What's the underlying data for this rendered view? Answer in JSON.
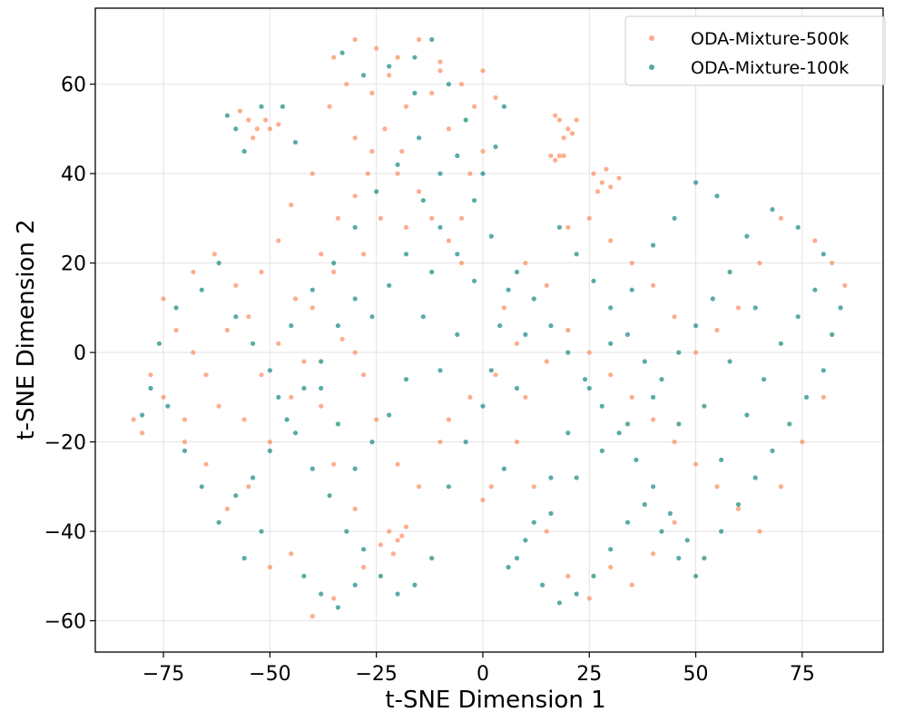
{
  "chart_data": {
    "type": "scatter",
    "title": "",
    "xlabel": "t-SNE Dimension 1",
    "ylabel": "t-SNE Dimension 2",
    "xlim": [
      -91,
      94
    ],
    "ylim": [
      -67,
      77
    ],
    "xticks": [
      -75,
      -50,
      -25,
      0,
      25,
      50,
      75
    ],
    "yticks": [
      -60,
      -40,
      -20,
      0,
      20,
      40,
      60
    ],
    "xtick_labels": [
      "−75",
      "−50",
      "−25",
      "0",
      "25",
      "50",
      "75"
    ],
    "ytick_labels": [
      "−60",
      "−40",
      "−20",
      "0",
      "20",
      "40",
      "60"
    ],
    "grid": true,
    "legend_position": "top-right",
    "series": [
      {
        "name": "ODA-Mixture-500k",
        "color": "#fc8d62",
        "points": [
          [
            -55,
            52
          ],
          [
            -53,
            50
          ],
          [
            -51,
            52
          ],
          [
            -54,
            48
          ],
          [
            -50,
            50
          ],
          [
            -57,
            54
          ],
          [
            -48,
            51
          ],
          [
            18,
            52
          ],
          [
            20,
            50
          ],
          [
            22,
            52
          ],
          [
            19,
            48
          ],
          [
            17,
            53
          ],
          [
            21,
            49
          ],
          [
            16,
            44
          ],
          [
            18,
            44
          ],
          [
            17,
            43
          ],
          [
            19,
            44
          ],
          [
            26,
            40
          ],
          [
            28,
            38
          ],
          [
            30,
            37
          ],
          [
            32,
            39
          ],
          [
            27,
            36
          ],
          [
            29,
            41
          ],
          [
            -22,
            -40
          ],
          [
            -20,
            -42
          ],
          [
            -18,
            -39
          ],
          [
            -24,
            -43
          ],
          [
            -21,
            -45
          ],
          [
            -19,
            -41
          ],
          [
            -35,
            66
          ],
          [
            -30,
            70
          ],
          [
            -25,
            68
          ],
          [
            -20,
            66
          ],
          [
            -15,
            70
          ],
          [
            -10,
            63
          ],
          [
            -5,
            60
          ],
          [
            0,
            63
          ],
          [
            3,
            57
          ],
          [
            -2,
            55
          ],
          [
            -30,
            48
          ],
          [
            -26,
            45
          ],
          [
            -20,
            40
          ],
          [
            -15,
            36
          ],
          [
            -12,
            30
          ],
          [
            -8,
            25
          ],
          [
            -5,
            20
          ],
          [
            -18,
            28
          ],
          [
            -24,
            30
          ],
          [
            -28,
            22
          ],
          [
            -35,
            18
          ],
          [
            -40,
            10
          ],
          [
            -33,
            3
          ],
          [
            -30,
            0
          ],
          [
            -28,
            -5
          ],
          [
            -25,
            -15
          ],
          [
            -20,
            -25
          ],
          [
            -15,
            -30
          ],
          [
            -45,
            -10
          ],
          [
            -50,
            -20
          ],
          [
            -55,
            -30
          ],
          [
            -60,
            -35
          ],
          [
            -65,
            -25
          ],
          [
            -70,
            -15
          ],
          [
            -75,
            -10
          ],
          [
            -80,
            -18
          ],
          [
            -72,
            5
          ],
          [
            -68,
            18
          ],
          [
            -63,
            22
          ],
          [
            -58,
            15
          ],
          [
            -55,
            8
          ],
          [
            -48,
            2
          ],
          [
            -42,
            -2
          ],
          [
            -38,
            -12
          ],
          [
            -35,
            -25
          ],
          [
            -30,
            -35
          ],
          [
            -28,
            -48
          ],
          [
            -35,
            -55
          ],
          [
            -40,
            -59
          ],
          [
            -45,
            -45
          ],
          [
            -50,
            -48
          ],
          [
            5,
            10
          ],
          [
            8,
            2
          ],
          [
            3,
            -5
          ],
          [
            -3,
            -10
          ],
          [
            -8,
            -15
          ],
          [
            -10,
            -20
          ],
          [
            -5,
            30
          ],
          [
            -3,
            40
          ],
          [
            0,
            45
          ],
          [
            -8,
            50
          ],
          [
            2,
            -30
          ],
          [
            0,
            -33
          ],
          [
            10,
            20
          ],
          [
            15,
            15
          ],
          [
            20,
            5
          ],
          [
            25,
            0
          ],
          [
            30,
            -5
          ],
          [
            35,
            -10
          ],
          [
            40,
            -15
          ],
          [
            45,
            -20
          ],
          [
            50,
            -25
          ],
          [
            55,
            -30
          ],
          [
            60,
            -35
          ],
          [
            65,
            -40
          ],
          [
            70,
            -30
          ],
          [
            75,
            -20
          ],
          [
            80,
            -10
          ],
          [
            85,
            15
          ],
          [
            82,
            20
          ],
          [
            78,
            25
          ],
          [
            70,
            30
          ],
          [
            65,
            20
          ],
          [
            60,
            10
          ],
          [
            55,
            5
          ],
          [
            50,
            0
          ],
          [
            45,
            8
          ],
          [
            40,
            15
          ],
          [
            35,
            20
          ],
          [
            30,
            25
          ],
          [
            25,
            30
          ],
          [
            20,
            28
          ],
          [
            15,
            -2
          ],
          [
            10,
            -10
          ],
          [
            8,
            -20
          ],
          [
            12,
            -30
          ],
          [
            15,
            -40
          ],
          [
            20,
            -50
          ],
          [
            25,
            -55
          ],
          [
            30,
            -48
          ],
          [
            35,
            -52
          ],
          [
            40,
            -45
          ],
          [
            45,
            -38
          ],
          [
            -10,
            65
          ],
          [
            -12,
            58
          ],
          [
            -18,
            55
          ],
          [
            -22,
            62
          ],
          [
            -26,
            58
          ],
          [
            -32,
            60
          ],
          [
            -36,
            55
          ],
          [
            -40,
            40
          ],
          [
            -45,
            33
          ],
          [
            -48,
            25
          ],
          [
            -52,
            18
          ],
          [
            -60,
            5
          ],
          [
            -65,
            -5
          ],
          [
            -70,
            -20
          ],
          [
            -78,
            -5
          ],
          [
            -82,
            -15
          ],
          [
            -75,
            12
          ],
          [
            -68,
            0
          ],
          [
            -62,
            -12
          ],
          [
            -56,
            -15
          ],
          [
            -52,
            -5
          ],
          [
            -44,
            12
          ],
          [
            -38,
            22
          ],
          [
            -34,
            30
          ],
          [
            -30,
            35
          ],
          [
            -27,
            40
          ],
          [
            -23,
            50
          ],
          [
            -19,
            45
          ]
        ]
      },
      {
        "name": "ODA-Mixture-100k",
        "color": "#1b8a82",
        "points": [
          [
            -60,
            53
          ],
          [
            -58,
            50
          ],
          [
            -52,
            55
          ],
          [
            -56,
            45
          ],
          [
            -47,
            55
          ],
          [
            -44,
            47
          ],
          [
            -33,
            67
          ],
          [
            -28,
            62
          ],
          [
            -22,
            64
          ],
          [
            -16,
            66
          ],
          [
            -12,
            70
          ],
          [
            -8,
            60
          ],
          [
            -4,
            52
          ],
          [
            -6,
            44
          ],
          [
            -10,
            40
          ],
          [
            -14,
            34
          ],
          [
            -10,
            28
          ],
          [
            -6,
            22
          ],
          [
            -2,
            16
          ],
          [
            -12,
            18
          ],
          [
            -18,
            22
          ],
          [
            -22,
            15
          ],
          [
            -26,
            8
          ],
          [
            -30,
            12
          ],
          [
            -34,
            6
          ],
          [
            -38,
            -2
          ],
          [
            -42,
            -8
          ],
          [
            -46,
            -15
          ],
          [
            -50,
            -22
          ],
          [
            -54,
            -28
          ],
          [
            -58,
            -32
          ],
          [
            -62,
            -38
          ],
          [
            -66,
            -30
          ],
          [
            -70,
            -22
          ],
          [
            -74,
            -12
          ],
          [
            -78,
            -8
          ],
          [
            -80,
            -14
          ],
          [
            -76,
            2
          ],
          [
            -72,
            10
          ],
          [
            -66,
            14
          ],
          [
            -62,
            20
          ],
          [
            -58,
            8
          ],
          [
            -54,
            2
          ],
          [
            -50,
            -4
          ],
          [
            -44,
            -18
          ],
          [
            -40,
            -26
          ],
          [
            -36,
            -32
          ],
          [
            -32,
            -40
          ],
          [
            -28,
            -44
          ],
          [
            -24,
            -50
          ],
          [
            -20,
            -54
          ],
          [
            -16,
            -52
          ],
          [
            -12,
            -46
          ],
          [
            -8,
            -30
          ],
          [
            -4,
            -20
          ],
          [
            0,
            -12
          ],
          [
            2,
            -4
          ],
          [
            4,
            6
          ],
          [
            6,
            14
          ],
          [
            2,
            26
          ],
          [
            -2,
            34
          ],
          [
            0,
            40
          ],
          [
            3,
            46
          ],
          [
            5,
            55
          ],
          [
            -15,
            48
          ],
          [
            -20,
            42
          ],
          [
            -25,
            36
          ],
          [
            -30,
            28
          ],
          [
            -35,
            20
          ],
          [
            -40,
            14
          ],
          [
            -45,
            6
          ],
          [
            -48,
            -10
          ],
          [
            -52,
            -40
          ],
          [
            -56,
            -46
          ],
          [
            -42,
            -50
          ],
          [
            -38,
            -54
          ],
          [
            -34,
            -57
          ],
          [
            -30,
            -52
          ],
          [
            8,
            18
          ],
          [
            12,
            12
          ],
          [
            16,
            6
          ],
          [
            20,
            0
          ],
          [
            24,
            -6
          ],
          [
            28,
            -12
          ],
          [
            32,
            -18
          ],
          [
            36,
            -24
          ],
          [
            40,
            -30
          ],
          [
            44,
            -36
          ],
          [
            48,
            -42
          ],
          [
            52,
            -46
          ],
          [
            56,
            -40
          ],
          [
            60,
            -34
          ],
          [
            64,
            -28
          ],
          [
            68,
            -22
          ],
          [
            72,
            -16
          ],
          [
            76,
            -10
          ],
          [
            80,
            -4
          ],
          [
            84,
            10
          ],
          [
            80,
            22
          ],
          [
            74,
            28
          ],
          [
            68,
            32
          ],
          [
            62,
            26
          ],
          [
            58,
            18
          ],
          [
            54,
            12
          ],
          [
            50,
            6
          ],
          [
            46,
            0
          ],
          [
            42,
            -6
          ],
          [
            38,
            -2
          ],
          [
            34,
            4
          ],
          [
            30,
            10
          ],
          [
            26,
            16
          ],
          [
            22,
            22
          ],
          [
            18,
            28
          ],
          [
            50,
            38
          ],
          [
            55,
            35
          ],
          [
            45,
            30
          ],
          [
            40,
            24
          ],
          [
            35,
            14
          ],
          [
            30,
            2
          ],
          [
            25,
            -8
          ],
          [
            20,
            -18
          ],
          [
            16,
            -28
          ],
          [
            12,
            -38
          ],
          [
            8,
            -46
          ],
          [
            14,
            -52
          ],
          [
            18,
            -56
          ],
          [
            22,
            -54
          ],
          [
            26,
            -50
          ],
          [
            30,
            -44
          ],
          [
            34,
            -38
          ],
          [
            38,
            -34
          ],
          [
            42,
            -40
          ],
          [
            46,
            -46
          ],
          [
            50,
            -50
          ],
          [
            56,
            -24
          ],
          [
            62,
            -14
          ],
          [
            66,
            -6
          ],
          [
            70,
            2
          ],
          [
            74,
            8
          ],
          [
            78,
            14
          ],
          [
            82,
            4
          ],
          [
            64,
            10
          ],
          [
            58,
            -2
          ],
          [
            52,
            -12
          ],
          [
            46,
            -16
          ],
          [
            40,
            -10
          ],
          [
            34,
            -16
          ],
          [
            28,
            -22
          ],
          [
            22,
            -28
          ],
          [
            16,
            -36
          ],
          [
            10,
            -42
          ],
          [
            6,
            -48
          ],
          [
            5,
            -26
          ],
          [
            8,
            -8
          ],
          [
            10,
            4
          ],
          [
            -14,
            8
          ],
          [
            -18,
            -6
          ],
          [
            -22,
            -14
          ],
          [
            -26,
            -20
          ],
          [
            -30,
            -26
          ],
          [
            -34,
            -16
          ],
          [
            -38,
            -8
          ],
          [
            -10,
            -4
          ],
          [
            -6,
            4
          ],
          [
            -16,
            58
          ]
        ]
      }
    ]
  }
}
